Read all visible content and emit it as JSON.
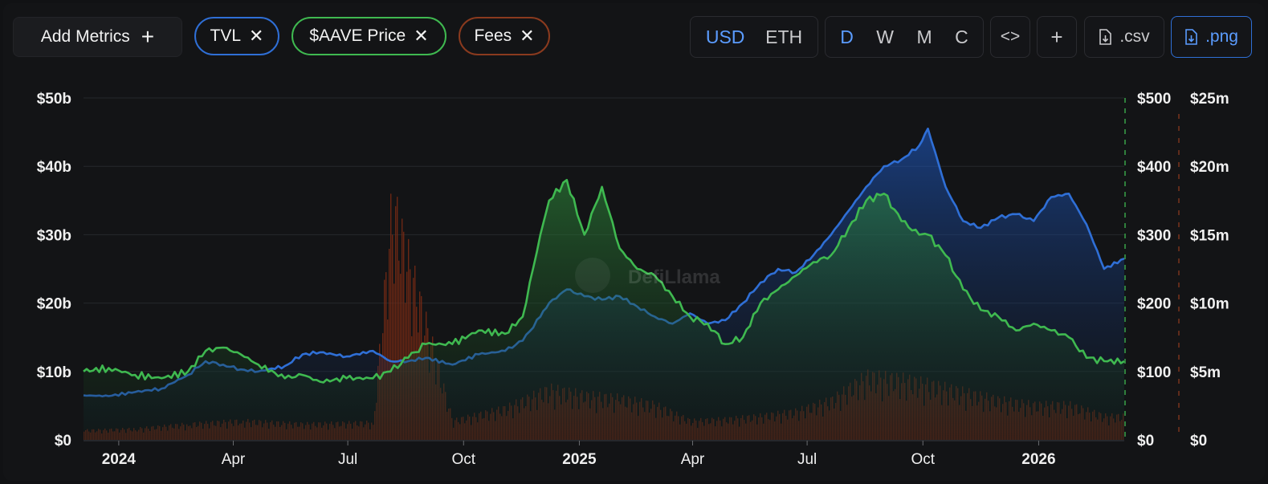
{
  "toolbar": {
    "add_metrics_label": "Add Metrics",
    "add_metrics_plus": "+",
    "metrics": [
      {
        "label": "TVL",
        "color": "#2f6fd6",
        "remove_glyph": "✕"
      },
      {
        "label": "$AAVE Price",
        "color": "#3fb950",
        "remove_glyph": "✕"
      },
      {
        "label": "Fees",
        "color": "#8a3a1e",
        "remove_glyph": "✕"
      }
    ],
    "currency_options": [
      "USD",
      "ETH"
    ],
    "currency_selected": "USD",
    "interval_options": [
      "D",
      "W",
      "M",
      "C"
    ],
    "interval_selected": "D",
    "embed_glyph": "<>",
    "add_glyph": "+",
    "csv_label": ".csv",
    "png_label": ".png",
    "accent_color": "#5b9cff"
  },
  "watermark": "DefiLlama",
  "chart_data": {
    "type": "area",
    "x_tick_labels": [
      "2024",
      "Apr",
      "Jul",
      "Oct",
      "2025",
      "Apr",
      "Jul",
      "Oct",
      "2026"
    ],
    "x_tick_dates": [
      "2024-01-01",
      "2024-04-01",
      "2024-07-01",
      "2024-10-01",
      "2025-01-01",
      "2025-04-01",
      "2025-07-01",
      "2025-10-01",
      "2026-01-01"
    ],
    "x_tick_bold": [
      true,
      false,
      false,
      false,
      true,
      false,
      false,
      false,
      true
    ],
    "x_range": [
      "2023-12-04",
      "2026-03-10"
    ],
    "grid": true,
    "axes": {
      "tvl": {
        "ticks": [
          "$0",
          "$10b",
          "$20b",
          "$30b",
          "$40b",
          "$50b"
        ],
        "range": [
          0,
          50
        ],
        "unit": "billion USD",
        "side": "left"
      },
      "price": {
        "ticks": [
          "$0",
          "$100",
          "$200",
          "$300",
          "$400",
          "$500"
        ],
        "range": [
          0,
          500
        ],
        "unit": "USD",
        "side": "right"
      },
      "fees": {
        "ticks": [
          "$0",
          "$5m",
          "$10m",
          "$15m",
          "$20m",
          "$25m"
        ],
        "range": [
          0,
          25
        ],
        "unit": "million USD",
        "side": "right"
      }
    },
    "series": [
      {
        "name": "TVL",
        "axis": "tvl",
        "color": "#2f6fd6",
        "x": [
          "2023-12-04",
          "2023-12-24",
          "2024-01-14",
          "2024-02-04",
          "2024-02-25",
          "2024-03-10",
          "2024-03-24",
          "2024-04-07",
          "2024-04-21",
          "2024-05-12",
          "2024-05-26",
          "2024-06-09",
          "2024-06-30",
          "2024-07-21",
          "2024-08-04",
          "2024-08-18",
          "2024-09-01",
          "2024-09-22",
          "2024-10-13",
          "2024-11-03",
          "2024-11-17",
          "2024-12-01",
          "2024-12-08",
          "2024-12-22",
          "2025-01-05",
          "2025-01-19",
          "2025-02-02",
          "2025-02-16",
          "2025-03-02",
          "2025-03-16",
          "2025-03-30",
          "2025-04-13",
          "2025-04-27",
          "2025-05-11",
          "2025-05-25",
          "2025-06-08",
          "2025-06-22",
          "2025-07-06",
          "2025-07-20",
          "2025-08-03",
          "2025-08-17",
          "2025-08-31",
          "2025-09-14",
          "2025-09-28",
          "2025-10-05",
          "2025-10-19",
          "2025-11-02",
          "2025-11-16",
          "2025-11-30",
          "2025-12-14",
          "2025-12-28",
          "2026-01-11",
          "2026-01-25",
          "2026-02-08",
          "2026-02-22",
          "2026-03-10"
        ],
        "values": [
          6.5,
          6.4,
          7.0,
          7.5,
          9.5,
          11.5,
          11.0,
          10.3,
          10.0,
          10.8,
          12.5,
          12.8,
          12.2,
          13.0,
          11.5,
          11.5,
          12.0,
          11.0,
          12.5,
          13.0,
          14.5,
          18.0,
          20.0,
          22.0,
          21.0,
          20.5,
          21.0,
          19.5,
          18.0,
          17.0,
          18.5,
          17.0,
          17.5,
          20.0,
          23.0,
          25.0,
          24.5,
          27.0,
          30.0,
          33.5,
          37.0,
          40.0,
          41.0,
          43.0,
          45.5,
          37.0,
          32.0,
          31.0,
          32.5,
          33.0,
          32.0,
          35.5,
          36.0,
          31.5,
          25.0,
          26.5
        ]
      },
      {
        "name": "$AAVE Price",
        "axis": "price",
        "color": "#3fb950",
        "x": [
          "2023-12-04",
          "2023-12-24",
          "2024-01-14",
          "2024-02-04",
          "2024-02-25",
          "2024-03-10",
          "2024-03-24",
          "2024-04-07",
          "2024-04-21",
          "2024-05-12",
          "2024-05-26",
          "2024-06-09",
          "2024-06-30",
          "2024-07-21",
          "2024-08-04",
          "2024-08-18",
          "2024-09-01",
          "2024-09-22",
          "2024-10-13",
          "2024-11-03",
          "2024-11-17",
          "2024-12-01",
          "2024-12-08",
          "2024-12-22",
          "2025-01-05",
          "2025-01-19",
          "2025-02-02",
          "2025-02-16",
          "2025-03-02",
          "2025-03-16",
          "2025-03-30",
          "2025-04-13",
          "2025-04-27",
          "2025-05-11",
          "2025-05-25",
          "2025-06-08",
          "2025-06-22",
          "2025-07-06",
          "2025-07-20",
          "2025-08-03",
          "2025-08-17",
          "2025-08-31",
          "2025-09-14",
          "2025-09-28",
          "2025-10-05",
          "2025-10-19",
          "2025-11-02",
          "2025-11-16",
          "2025-11-30",
          "2025-12-14",
          "2025-12-28",
          "2026-01-11",
          "2026-01-25",
          "2026-02-08",
          "2026-02-22",
          "2026-03-10"
        ],
        "values": [
          100,
          105,
          95,
          90,
          100,
          130,
          135,
          125,
          110,
          90,
          95,
          85,
          90,
          90,
          100,
          120,
          140,
          140,
          160,
          155,
          180,
          300,
          350,
          380,
          300,
          370,
          280,
          250,
          240,
          210,
          180,
          170,
          140,
          150,
          200,
          220,
          240,
          260,
          270,
          310,
          350,
          360,
          320,
          300,
          300,
          270,
          220,
          190,
          180,
          160,
          170,
          160,
          150,
          120,
          115,
          115
        ]
      }
    ],
    "fees_bars": {
      "name": "Fees",
      "axis": "fees",
      "color": "#7a2a14",
      "x": [
        "2023-12-04",
        "2024-01-14",
        "2024-02-25",
        "2024-04-07",
        "2024-05-26",
        "2024-07-21",
        "2024-08-05",
        "2024-09-22",
        "2024-11-03",
        "2024-12-08",
        "2025-01-05",
        "2025-02-02",
        "2025-03-02",
        "2025-03-30",
        "2025-04-27",
        "2025-05-25",
        "2025-06-22",
        "2025-07-20",
        "2025-08-17",
        "2025-09-14",
        "2025-10-05",
        "2025-11-02",
        "2025-11-30",
        "2025-12-28",
        "2026-01-25",
        "2026-02-22",
        "2026-03-10"
      ],
      "values": [
        0.6,
        0.7,
        1.0,
        1.2,
        1.0,
        1.1,
        15.0,
        1.2,
        2.0,
        3.2,
        2.8,
        2.6,
        2.2,
        1.2,
        1.3,
        1.5,
        1.8,
        2.5,
        4.0,
        3.8,
        3.5,
        3.0,
        2.5,
        2.2,
        2.2,
        1.5,
        1.5
      ]
    },
    "legend": "top-left"
  }
}
